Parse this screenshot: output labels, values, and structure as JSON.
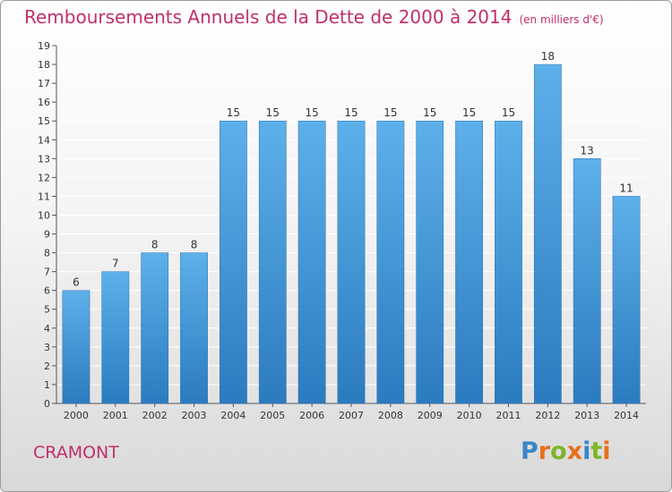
{
  "header": {
    "title": "Remboursements Annuels de la Dette de 2000 à 2014",
    "unit": "(en milliers d'€)"
  },
  "footer": {
    "place": "CRAMONT",
    "logo_letters": [
      "P",
      "r",
      "o",
      "x",
      "i",
      "t",
      "i"
    ]
  },
  "colors": {
    "bar_top": "#5eb0ea",
    "bar_bottom": "#2b7bbf",
    "title": "#c0306a",
    "grid": "#ffffff"
  },
  "chart_data": {
    "type": "bar",
    "title": "Remboursements Annuels de la Dette de 2000 à 2014",
    "subtitle": "(en milliers d'€)",
    "categories": [
      "2000",
      "2001",
      "2002",
      "2003",
      "2004",
      "2005",
      "2006",
      "2007",
      "2008",
      "2009",
      "2010",
      "2011",
      "2012",
      "2013",
      "2014"
    ],
    "values": [
      6,
      7,
      8,
      8,
      15,
      15,
      15,
      15,
      15,
      15,
      15,
      15,
      18,
      13,
      11
    ],
    "value_labels": [
      "6",
      "7",
      "8",
      "8",
      "15",
      "15",
      "15",
      "15",
      "15",
      "15",
      "15",
      "15",
      "18",
      "13",
      "11"
    ],
    "ylim": [
      0,
      19
    ],
    "yticks": [
      "0",
      "1",
      "2",
      "3",
      "4",
      "5",
      "6",
      "7",
      "8",
      "9",
      "10",
      "11",
      "12",
      "13",
      "14",
      "15",
      "16",
      "17",
      "18",
      "19"
    ],
    "grid": true,
    "xlabel": "",
    "ylabel": ""
  }
}
